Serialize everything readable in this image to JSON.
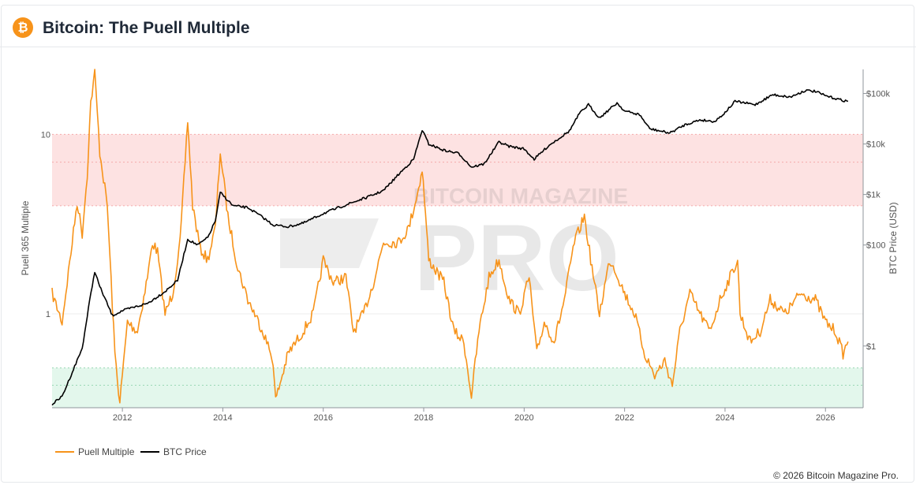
{
  "header": {
    "title": "Bitcoin: The Puell Multiple",
    "logo_glyph": "₿"
  },
  "footer": {
    "copyright": "© 2026 Bitcoin Magazine Pro."
  },
  "watermark": {
    "top": "BITCOIN MAGAZINE",
    "main": "PRO"
  },
  "colors": {
    "puell": "#f7931a",
    "price": "#000000",
    "red_band": "#fde2e2",
    "green_band": "#e3f7ec",
    "brand": "#f7931a"
  },
  "chart_data": {
    "type": "line",
    "title": "Bitcoin: The Puell Multiple",
    "xlabel": "",
    "ylabel_left": "Puell 365 Multiple",
    "ylabel_right": "BTC Price (USD)",
    "x_ticks": [
      "2012",
      "2014",
      "2016",
      "2018",
      "2020",
      "2022",
      "2024",
      "2026"
    ],
    "y_left_ticks": [
      "10",
      "1"
    ],
    "y_left_scale": "log",
    "y_left_range": [
      0.3,
      23
    ],
    "y_right_ticks": [
      "$100k",
      "$10k",
      "$1k",
      "$100",
      "$1"
    ],
    "y_right_scale": "log",
    "y_right_range": [
      0.06,
      300000
    ],
    "bands": [
      {
        "name": "red",
        "from": 4,
        "to": 10
      },
      {
        "name": "green",
        "from": 0.3,
        "to": 0.5
      }
    ],
    "legend": {
      "position": "bottom-left",
      "items": [
        "Puell Multiple",
        "BTC Price"
      ]
    },
    "series": [
      {
        "name": "Puell Multiple",
        "axis": "left",
        "points": [
          [
            2010.6,
            1.3
          ],
          [
            2010.8,
            0.9
          ],
          [
            2011.0,
            2.5
          ],
          [
            2011.1,
            4.2
          ],
          [
            2011.2,
            2.8
          ],
          [
            2011.3,
            6.0
          ],
          [
            2011.37,
            15.0
          ],
          [
            2011.45,
            22.0
          ],
          [
            2011.55,
            8.0
          ],
          [
            2011.7,
            4.0
          ],
          [
            2011.85,
            0.6
          ],
          [
            2011.95,
            0.32
          ],
          [
            2012.1,
            0.9
          ],
          [
            2012.3,
            0.8
          ],
          [
            2012.5,
            1.6
          ],
          [
            2012.6,
            2.5
          ],
          [
            2012.7,
            2.2
          ],
          [
            2012.85,
            1.0
          ],
          [
            2013.0,
            1.3
          ],
          [
            2013.15,
            2.5
          ],
          [
            2013.3,
            12.0
          ],
          [
            2013.4,
            4.0
          ],
          [
            2013.55,
            2.3
          ],
          [
            2013.7,
            2.0
          ],
          [
            2013.85,
            3.0
          ],
          [
            2013.95,
            8.0
          ],
          [
            2014.1,
            3.5
          ],
          [
            2014.3,
            1.8
          ],
          [
            2014.5,
            1.2
          ],
          [
            2014.8,
            0.8
          ],
          [
            2015.0,
            0.55
          ],
          [
            2015.05,
            0.33
          ],
          [
            2015.3,
            0.6
          ],
          [
            2015.6,
            0.8
          ],
          [
            2015.8,
            1.0
          ],
          [
            2016.0,
            2.0
          ],
          [
            2016.2,
            1.5
          ],
          [
            2016.45,
            1.6
          ],
          [
            2016.6,
            0.8
          ],
          [
            2016.8,
            1.0
          ],
          [
            2017.0,
            1.5
          ],
          [
            2017.2,
            2.5
          ],
          [
            2017.5,
            2.5
          ],
          [
            2017.7,
            3.0
          ],
          [
            2017.9,
            5.0
          ],
          [
            2017.97,
            6.5
          ],
          [
            2018.1,
            2.0
          ],
          [
            2018.4,
            1.5
          ],
          [
            2018.6,
            0.8
          ],
          [
            2018.8,
            0.7
          ],
          [
            2018.95,
            0.35
          ],
          [
            2019.1,
            0.8
          ],
          [
            2019.3,
            1.6
          ],
          [
            2019.5,
            2.0
          ],
          [
            2019.7,
            1.2
          ],
          [
            2019.9,
            1.0
          ],
          [
            2020.1,
            1.6
          ],
          [
            2020.25,
            0.6
          ],
          [
            2020.4,
            0.9
          ],
          [
            2020.6,
            0.7
          ],
          [
            2020.8,
            1.2
          ],
          [
            2021.0,
            2.5
          ],
          [
            2021.2,
            3.5
          ],
          [
            2021.35,
            1.8
          ],
          [
            2021.5,
            1.0
          ],
          [
            2021.7,
            2.0
          ],
          [
            2021.8,
            1.8
          ],
          [
            2022.0,
            1.3
          ],
          [
            2022.2,
            1.0
          ],
          [
            2022.4,
            0.6
          ],
          [
            2022.6,
            0.45
          ],
          [
            2022.8,
            0.55
          ],
          [
            2022.95,
            0.4
          ],
          [
            2023.1,
            0.8
          ],
          [
            2023.3,
            1.3
          ],
          [
            2023.5,
            1.0
          ],
          [
            2023.7,
            0.8
          ],
          [
            2023.9,
            1.2
          ],
          [
            2024.1,
            1.6
          ],
          [
            2024.25,
            2.0
          ],
          [
            2024.3,
            1.0
          ],
          [
            2024.5,
            0.7
          ],
          [
            2024.7,
            0.8
          ],
          [
            2024.9,
            1.2
          ],
          [
            2025.2,
            1.0
          ],
          [
            2025.5,
            1.3
          ],
          [
            2025.8,
            1.2
          ],
          [
            2026.0,
            0.9
          ],
          [
            2026.2,
            0.8
          ],
          [
            2026.35,
            0.6
          ],
          [
            2026.45,
            0.7
          ]
        ]
      },
      {
        "name": "BTC Price",
        "axis": "right",
        "points": [
          [
            2010.6,
            0.07
          ],
          [
            2010.8,
            0.1
          ],
          [
            2011.0,
            0.3
          ],
          [
            2011.2,
            0.9
          ],
          [
            2011.35,
            8.0
          ],
          [
            2011.45,
            30.0
          ],
          [
            2011.55,
            15.0
          ],
          [
            2011.8,
            4.0
          ],
          [
            2012.0,
            5.0
          ],
          [
            2012.5,
            7.0
          ],
          [
            2012.85,
            12.0
          ],
          [
            2013.1,
            20.0
          ],
          [
            2013.3,
            130.0
          ],
          [
            2013.5,
            100.0
          ],
          [
            2013.7,
            140.0
          ],
          [
            2013.85,
            300.0
          ],
          [
            2013.95,
            1100.0
          ],
          [
            2014.2,
            600.0
          ],
          [
            2014.5,
            550.0
          ],
          [
            2014.8,
            350.0
          ],
          [
            2015.0,
            250.0
          ],
          [
            2015.3,
            230.0
          ],
          [
            2015.6,
            270.0
          ],
          [
            2016.0,
            420.0
          ],
          [
            2016.5,
            650.0
          ],
          [
            2016.9,
            900.0
          ],
          [
            2017.2,
            1200.0
          ],
          [
            2017.5,
            2500.0
          ],
          [
            2017.8,
            5000.0
          ],
          [
            2017.97,
            19000.0
          ],
          [
            2018.1,
            10000.0
          ],
          [
            2018.4,
            7500.0
          ],
          [
            2018.7,
            6500.0
          ],
          [
            2018.95,
            3500.0
          ],
          [
            2019.2,
            4000.0
          ],
          [
            2019.5,
            11000.0
          ],
          [
            2019.7,
            9000.0
          ],
          [
            2020.0,
            8000.0
          ],
          [
            2020.2,
            5000.0
          ],
          [
            2020.5,
            9500.0
          ],
          [
            2020.9,
            18000.0
          ],
          [
            2021.1,
            40000.0
          ],
          [
            2021.28,
            60000.0
          ],
          [
            2021.5,
            33000.0
          ],
          [
            2021.85,
            65000.0
          ],
          [
            2022.0,
            45000.0
          ],
          [
            2022.3,
            38000.0
          ],
          [
            2022.5,
            20000.0
          ],
          [
            2022.9,
            16500.0
          ],
          [
            2023.2,
            24000.0
          ],
          [
            2023.5,
            30000.0
          ],
          [
            2023.8,
            28000.0
          ],
          [
            2024.0,
            42000.0
          ],
          [
            2024.2,
            70000.0
          ],
          [
            2024.6,
            60000.0
          ],
          [
            2024.95,
            95000.0
          ],
          [
            2025.3,
            85000.0
          ],
          [
            2025.6,
            115000.0
          ],
          [
            2025.8,
            110000.0
          ],
          [
            2026.0,
            90000.0
          ],
          [
            2026.3,
            75000.0
          ],
          [
            2026.45,
            70000.0
          ]
        ]
      }
    ]
  }
}
